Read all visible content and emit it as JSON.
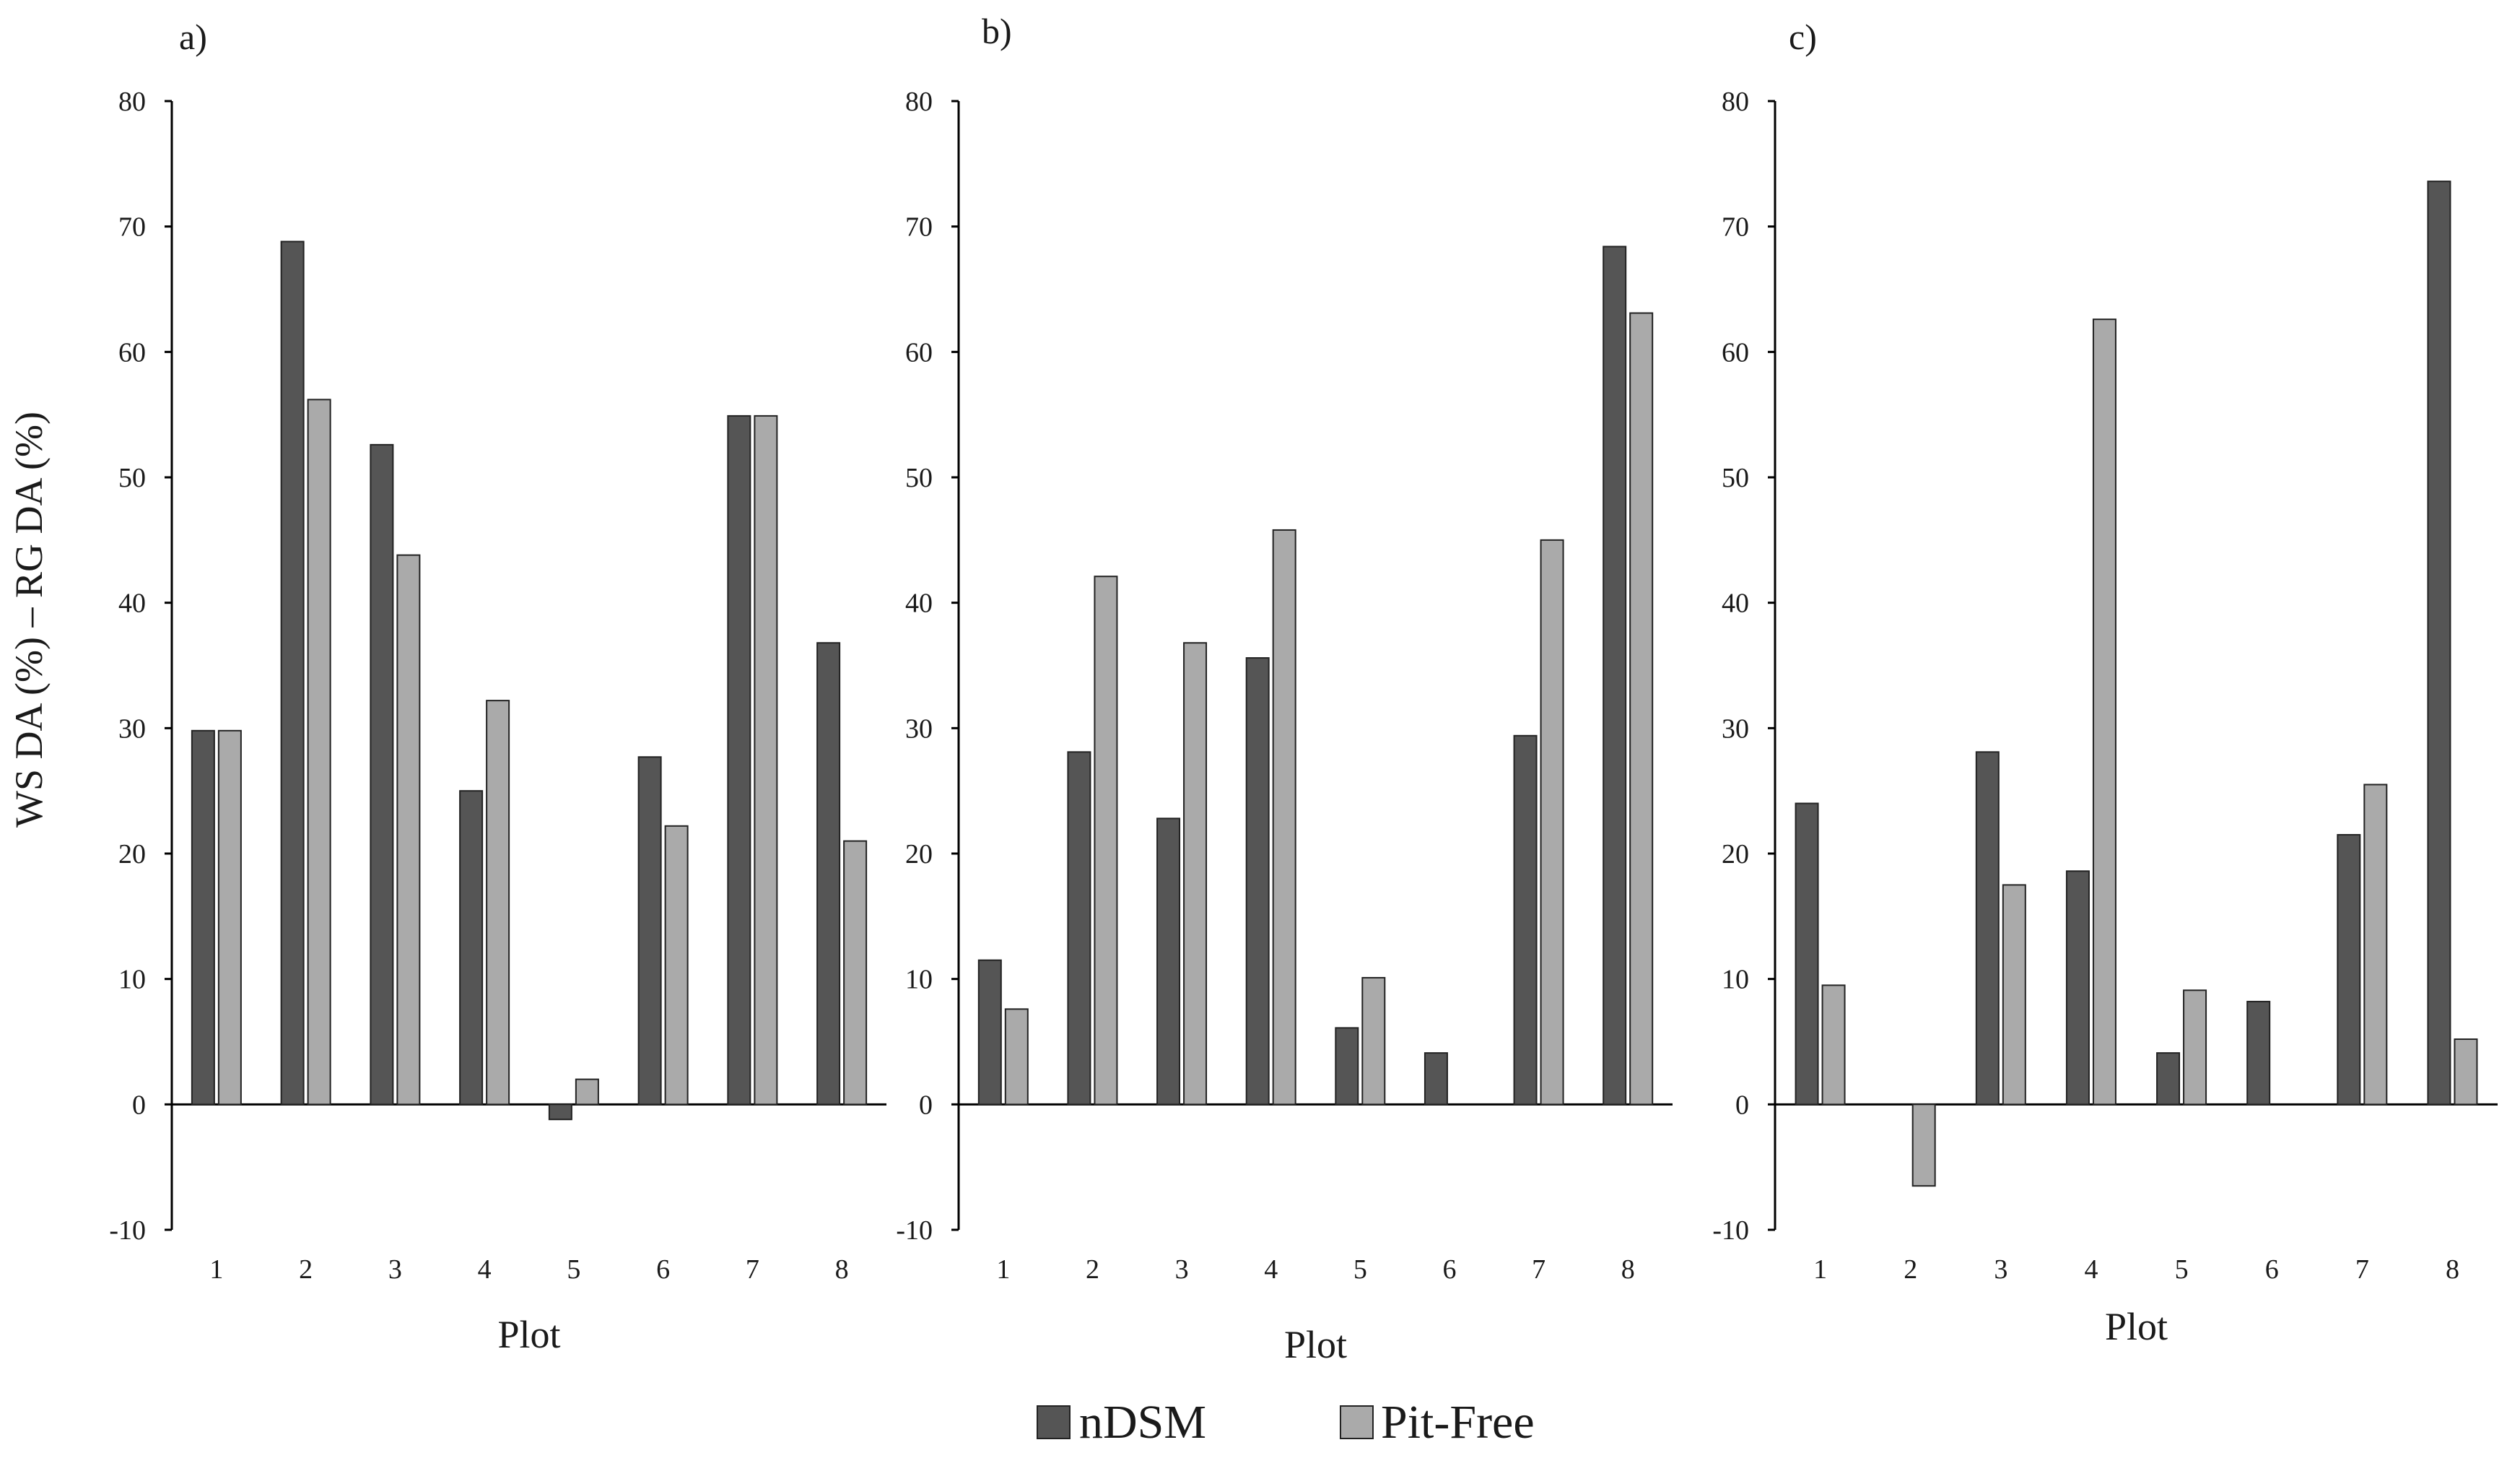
{
  "y_axis_label": "WS DA (%) – RG DA (%)",
  "legend": [
    {
      "label": "nDSM",
      "color": "#555555"
    },
    {
      "label": "Pit-Free",
      "color": "#aaaaaa"
    }
  ],
  "chart_data": [
    {
      "type": "bar",
      "panel_label": "a)",
      "xlabel": "Plot",
      "categories": [
        "1",
        "2",
        "3",
        "4",
        "5",
        "6",
        "7",
        "8"
      ],
      "ylim": [
        -10,
        80
      ],
      "yticks": [
        -10,
        0,
        10,
        20,
        30,
        40,
        50,
        60,
        70,
        80
      ],
      "series": [
        {
          "name": "nDSM",
          "values": [
            29.8,
            68.8,
            52.6,
            25.0,
            -1.2,
            27.7,
            54.9,
            36.8
          ]
        },
        {
          "name": "Pit-Free",
          "values": [
            29.8,
            56.2,
            43.8,
            32.2,
            2.0,
            22.2,
            54.9,
            21.0
          ]
        }
      ]
    },
    {
      "type": "bar",
      "panel_label": "b)",
      "xlabel": "Plot",
      "categories": [
        "1",
        "2",
        "3",
        "4",
        "5",
        "6",
        "7",
        "8"
      ],
      "ylim": [
        -10,
        80
      ],
      "yticks": [
        -10,
        0,
        10,
        20,
        30,
        40,
        50,
        60,
        70,
        80
      ],
      "series": [
        {
          "name": "nDSM",
          "values": [
            11.5,
            28.1,
            22.8,
            35.6,
            6.1,
            4.1,
            29.4,
            68.4
          ]
        },
        {
          "name": "Pit-Free",
          "values": [
            7.6,
            42.1,
            36.8,
            45.8,
            10.1,
            0,
            45.0,
            63.1
          ]
        }
      ]
    },
    {
      "type": "bar",
      "panel_label": "c)",
      "xlabel": "Plot",
      "categories": [
        "1",
        "2",
        "3",
        "4",
        "5",
        "6",
        "7",
        "8"
      ],
      "ylim": [
        -10,
        80
      ],
      "yticks": [
        -10,
        0,
        10,
        20,
        30,
        40,
        50,
        60,
        70,
        80
      ],
      "series": [
        {
          "name": "nDSM",
          "values": [
            24.0,
            0,
            28.1,
            18.6,
            4.1,
            8.2,
            21.5,
            73.6
          ]
        },
        {
          "name": "Pit-Free",
          "values": [
            9.5,
            -6.5,
            17.5,
            62.6,
            9.1,
            0,
            25.5,
            5.2
          ]
        }
      ]
    }
  ]
}
